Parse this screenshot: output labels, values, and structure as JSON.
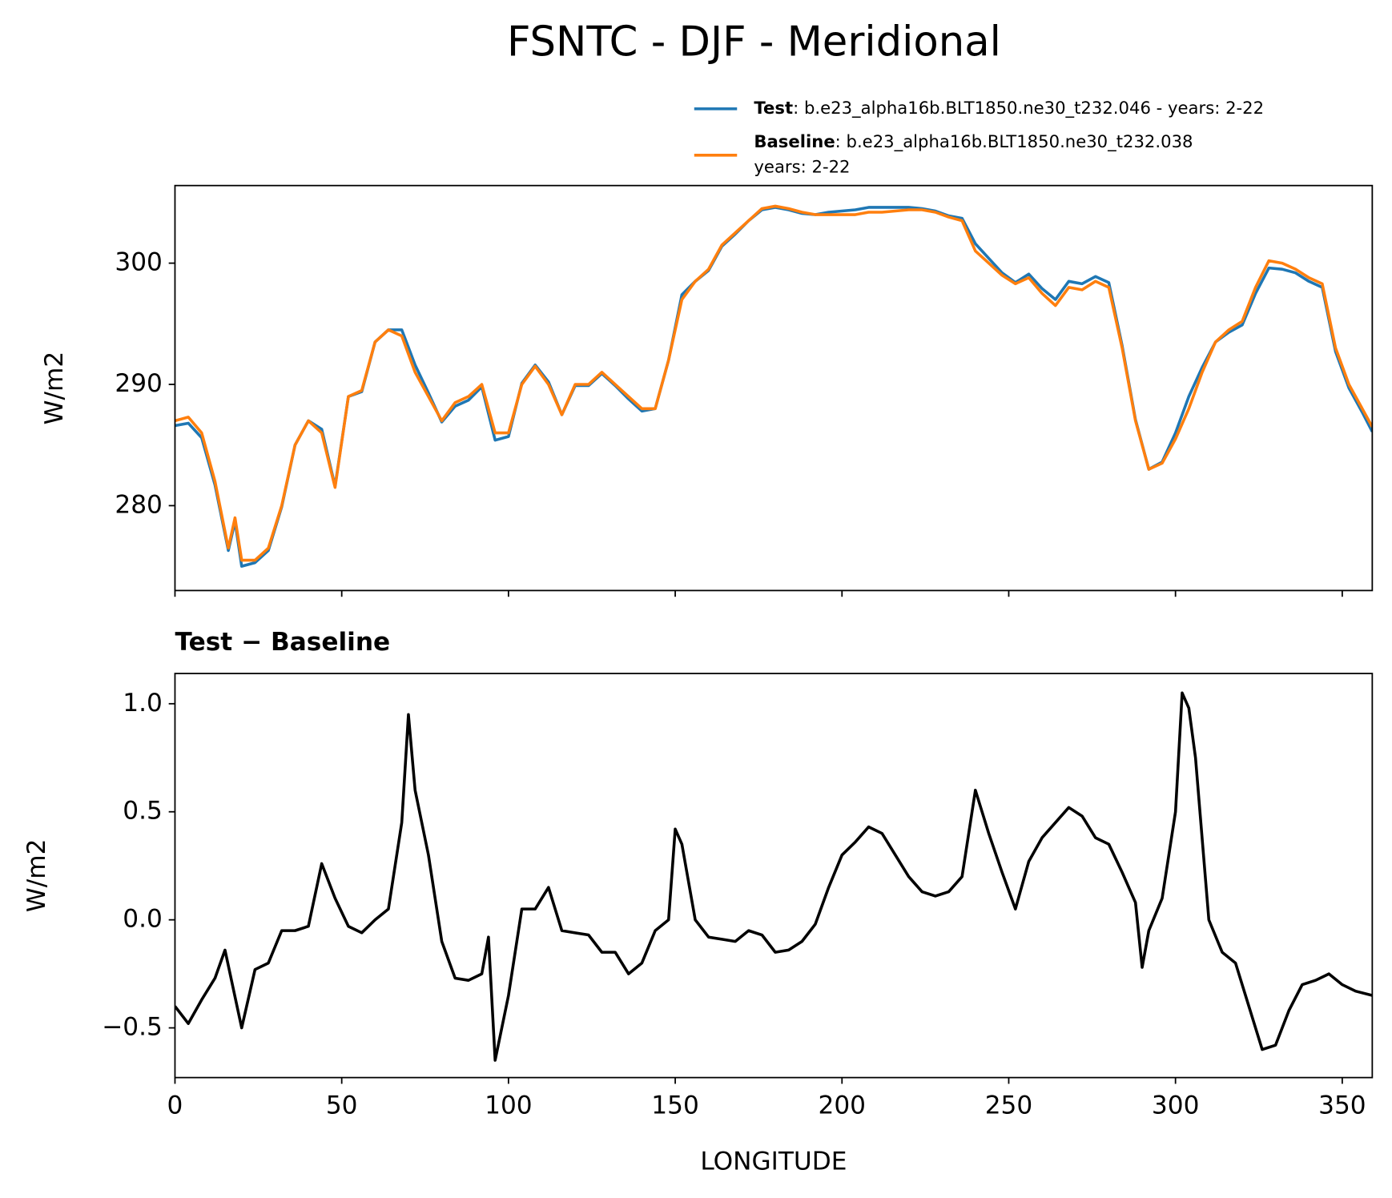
{
  "title": "FSNTC - DJF - Meridional",
  "chart_data": [
    {
      "type": "line",
      "ylabel": "W/m2",
      "xlim": [
        0,
        359
      ],
      "xticks": [
        0,
        50,
        100,
        150,
        200,
        250,
        300,
        350
      ],
      "ylim": [
        273.0,
        306.4
      ],
      "yticks": [
        280,
        290,
        300
      ],
      "x": [
        0,
        4,
        8,
        12,
        16,
        18,
        20,
        24,
        28,
        32,
        36,
        40,
        44,
        48,
        52,
        56,
        60,
        64,
        68,
        72,
        76,
        80,
        84,
        88,
        92,
        96,
        100,
        104,
        108,
        112,
        116,
        120,
        124,
        128,
        132,
        136,
        140,
        144,
        148,
        152,
        156,
        160,
        164,
        168,
        172,
        176,
        180,
        184,
        188,
        192,
        196,
        200,
        204,
        208,
        212,
        216,
        220,
        224,
        228,
        232,
        236,
        240,
        244,
        248,
        252,
        256,
        260,
        264,
        268,
        272,
        276,
        280,
        284,
        288,
        292,
        296,
        300,
        304,
        308,
        312,
        316,
        320,
        324,
        328,
        332,
        336,
        340,
        344,
        348,
        352,
        356,
        359
      ],
      "series": [
        {
          "name": "Test",
          "label": [
            ": b.e23_alpha16b.BLT1850.ne30_t232.046 - years: 2-22"
          ],
          "color": "#1f77b4",
          "values": [
            286.6,
            286.8,
            285.6,
            281.7,
            276.3,
            278.7,
            275.0,
            275.3,
            276.3,
            279.9,
            285,
            287,
            286.3,
            281.6,
            289,
            289.4,
            293.5,
            294.5,
            294.5,
            291.6,
            289.3,
            286.9,
            288.2,
            288.7,
            289.8,
            285.4,
            285.7,
            290.1,
            291.6,
            290.2,
            287.5,
            289.9,
            289.9,
            290.9,
            289.9,
            288.8,
            287.8,
            288,
            292,
            297.4,
            298.5,
            299.4,
            301.4,
            302.4,
            303.5,
            304.4,
            304.6,
            304.4,
            304.1,
            304,
            304.2,
            304.3,
            304.4,
            304.6,
            304.6,
            304.6,
            304.6,
            304.5,
            304.3,
            303.9,
            303.7,
            301.6,
            300.4,
            299.2,
            298.4,
            299.1,
            297.9,
            297,
            298.5,
            298.3,
            298.9,
            298.4,
            293.2,
            287.1,
            283,
            283.6,
            286,
            289,
            291.4,
            293.5,
            294.3,
            294.9,
            297.5,
            299.6,
            299.5,
            299.2,
            298.5,
            298,
            292.7,
            289.7,
            287.7,
            286.1
          ]
        },
        {
          "name": "Baseline",
          "label": [
            ": b.e23_alpha16b.BLT1850.ne30_t232.038",
            "years: 2-22"
          ],
          "color": "#ff7f0e",
          "values": [
            287,
            287.3,
            286,
            282,
            276.5,
            279,
            275.5,
            275.5,
            276.5,
            280,
            285,
            287,
            286,
            281.5,
            289,
            289.5,
            293.5,
            294.5,
            294,
            291,
            289,
            287,
            288.5,
            289,
            290,
            286,
            286,
            290,
            291.5,
            290,
            287.5,
            290,
            290,
            291,
            290,
            289,
            288,
            288,
            292,
            297,
            298.5,
            299.5,
            301.5,
            302.5,
            303.5,
            304.5,
            304.7,
            304.5,
            304.2,
            304,
            304,
            304,
            304,
            304.2,
            304.2,
            304.3,
            304.4,
            304.4,
            304.2,
            303.8,
            303.5,
            301,
            300,
            299,
            298.3,
            298.8,
            297.5,
            296.5,
            298,
            297.8,
            298.5,
            298,
            293,
            287,
            283,
            283.5,
            285.5,
            288,
            291,
            293.5,
            294.5,
            295.2,
            298,
            300.2,
            300,
            299.5,
            298.8,
            298.3,
            293,
            290,
            288,
            286.5
          ]
        }
      ]
    },
    {
      "type": "line",
      "title": "Test − Baseline",
      "xlabel": "LONGITUDE",
      "ylabel": "W/m2",
      "xlim": [
        0,
        359
      ],
      "xticks": [
        0,
        50,
        100,
        150,
        200,
        250,
        300,
        350
      ],
      "ylim": [
        -0.73,
        1.14
      ],
      "yticks": [
        {
          "value": -0.5,
          "label": "−0.5"
        },
        {
          "value": 0,
          "label": "0.0"
        },
        0.5,
        {
          "value": 1.0,
          "label": "1.0"
        }
      ],
      "color": "#000000",
      "x": [
        0,
        4,
        8,
        12,
        15,
        20,
        24,
        28,
        32,
        36,
        40,
        44,
        48,
        52,
        56,
        60,
        64,
        68,
        70,
        72,
        76,
        80,
        84,
        88,
        92,
        94,
        96,
        100,
        104,
        108,
        112,
        116,
        120,
        124,
        128,
        132,
        136,
        140,
        144,
        148,
        150,
        152,
        156,
        160,
        164,
        168,
        172,
        176,
        180,
        184,
        188,
        192,
        196,
        200,
        204,
        208,
        212,
        216,
        220,
        224,
        228,
        232,
        236,
        240,
        244,
        248,
        252,
        256,
        260,
        264,
        268,
        272,
        276,
        280,
        284,
        288,
        290,
        292,
        296,
        300,
        302,
        304,
        306,
        310,
        314,
        318,
        322,
        326,
        330,
        334,
        338,
        342,
        346,
        350,
        354,
        359
      ],
      "values": [
        -0.4,
        -0.48,
        -0.37,
        -0.27,
        -0.14,
        -0.5,
        -0.23,
        -0.2,
        -0.05,
        -0.05,
        -0.03,
        0.26,
        0.1,
        -0.03,
        -0.06,
        0.0,
        0.05,
        0.45,
        0.95,
        0.6,
        0.3,
        -0.1,
        -0.27,
        -0.28,
        -0.25,
        -0.08,
        -0.65,
        -0.35,
        0.05,
        0.05,
        0.15,
        -0.05,
        -0.06,
        -0.07,
        -0.15,
        -0.15,
        -0.25,
        -0.2,
        -0.05,
        0.0,
        0.42,
        0.35,
        0.0,
        -0.08,
        -0.09,
        -0.1,
        -0.05,
        -0.07,
        -0.15,
        -0.14,
        -0.1,
        -0.02,
        0.15,
        0.3,
        0.36,
        0.43,
        0.4,
        0.3,
        0.2,
        0.13,
        0.11,
        0.13,
        0.2,
        0.6,
        0.4,
        0.22,
        0.05,
        0.27,
        0.38,
        0.45,
        0.52,
        0.48,
        0.38,
        0.35,
        0.22,
        0.08,
        -0.22,
        -0.05,
        0.1,
        0.5,
        1.05,
        0.98,
        0.75,
        0.0,
        -0.15,
        -0.2,
        -0.4,
        -0.6,
        -0.58,
        -0.42,
        -0.3,
        -0.28,
        -0.25,
        -0.3,
        -0.33,
        -0.35
      ]
    }
  ]
}
